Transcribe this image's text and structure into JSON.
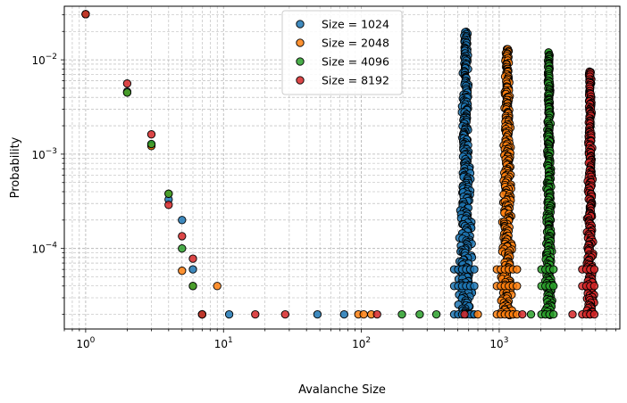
{
  "chart_data": {
    "type": "scatter",
    "xscale": "log",
    "yscale": "log",
    "xlabel": "Avalanche Size",
    "ylabel": "Probability",
    "xlim": [
      0.7,
      7500
    ],
    "ylim": [
      1.4e-05,
      0.037
    ],
    "x_ticks": [
      {
        "value": 1,
        "base": "10",
        "exp": "0"
      },
      {
        "value": 10,
        "base": "10",
        "exp": "1"
      },
      {
        "value": 100,
        "base": "10",
        "exp": "2"
      },
      {
        "value": 1000,
        "base": "10",
        "exp": "3"
      }
    ],
    "y_ticks": [
      {
        "value": 0.0001,
        "base": "10",
        "exp": "−4"
      },
      {
        "value": 0.001,
        "base": "10",
        "exp": "−3"
      },
      {
        "value": 0.01,
        "base": "10",
        "exp": "−2"
      }
    ],
    "grid": true,
    "legend_position": "top-center",
    "series": [
      {
        "name": "Size = 1024",
        "color": "#1f77b4",
        "points": [
          [
            1,
            0.0305
          ],
          [
            2,
            0.0046
          ],
          [
            3,
            0.00125
          ],
          [
            4,
            0.00033
          ],
          [
            5,
            0.0002
          ],
          [
            6,
            6e-05
          ],
          [
            7,
            2e-05
          ],
          [
            11,
            2e-05
          ],
          [
            48,
            2e-05
          ],
          [
            75,
            2e-05
          ]
        ],
        "column": {
          "xmin": 500,
          "xmax": 650,
          "ymin": 2e-05,
          "ymax": 0.0198
        }
      },
      {
        "name": "Size = 2048",
        "color": "#ff7f0e",
        "points": [
          [
            1,
            0.0305
          ],
          [
            2,
            0.0045
          ],
          [
            3,
            0.00122
          ],
          [
            4,
            0.00038
          ],
          [
            5,
            5.8e-05
          ],
          [
            6,
            4e-05
          ],
          [
            9,
            4e-05
          ],
          [
            95,
            2e-05
          ],
          [
            104,
            2e-05
          ],
          [
            118,
            2e-05
          ],
          [
            700,
            2e-05
          ]
        ],
        "column": {
          "xmin": 1020,
          "xmax": 1280,
          "ymin": 2e-05,
          "ymax": 0.013
        }
      },
      {
        "name": "Size = 4096",
        "color": "#2ca02c",
        "points": [
          [
            1,
            0.0305
          ],
          [
            2,
            0.0045
          ],
          [
            3,
            0.00128
          ],
          [
            4,
            0.00038
          ],
          [
            5,
            0.0001
          ],
          [
            6,
            4e-05
          ],
          [
            7,
            2e-05
          ],
          [
            197,
            2e-05
          ],
          [
            265,
            2e-05
          ],
          [
            350,
            2e-05
          ],
          [
            1700,
            2e-05
          ]
        ],
        "column": {
          "xmin": 2150,
          "xmax": 2450,
          "ymin": 2e-05,
          "ymax": 0.0118
        }
      },
      {
        "name": "Size = 8192",
        "color": "#d62728",
        "points": [
          [
            1,
            0.0305
          ],
          [
            2,
            0.0056
          ],
          [
            3,
            0.00162
          ],
          [
            4,
            0.00029
          ],
          [
            5,
            0.000135
          ],
          [
            6,
            7.8e-05
          ],
          [
            7,
            2e-05
          ],
          [
            17,
            2e-05
          ],
          [
            28,
            2e-05
          ],
          [
            130,
            2e-05
          ],
          [
            560,
            2e-05
          ],
          [
            1470,
            2e-05
          ],
          [
            3400,
            2e-05
          ]
        ],
        "column": {
          "xmin": 4250,
          "xmax": 4900,
          "ymin": 2e-05,
          "ymax": 0.0075
        }
      }
    ]
  }
}
